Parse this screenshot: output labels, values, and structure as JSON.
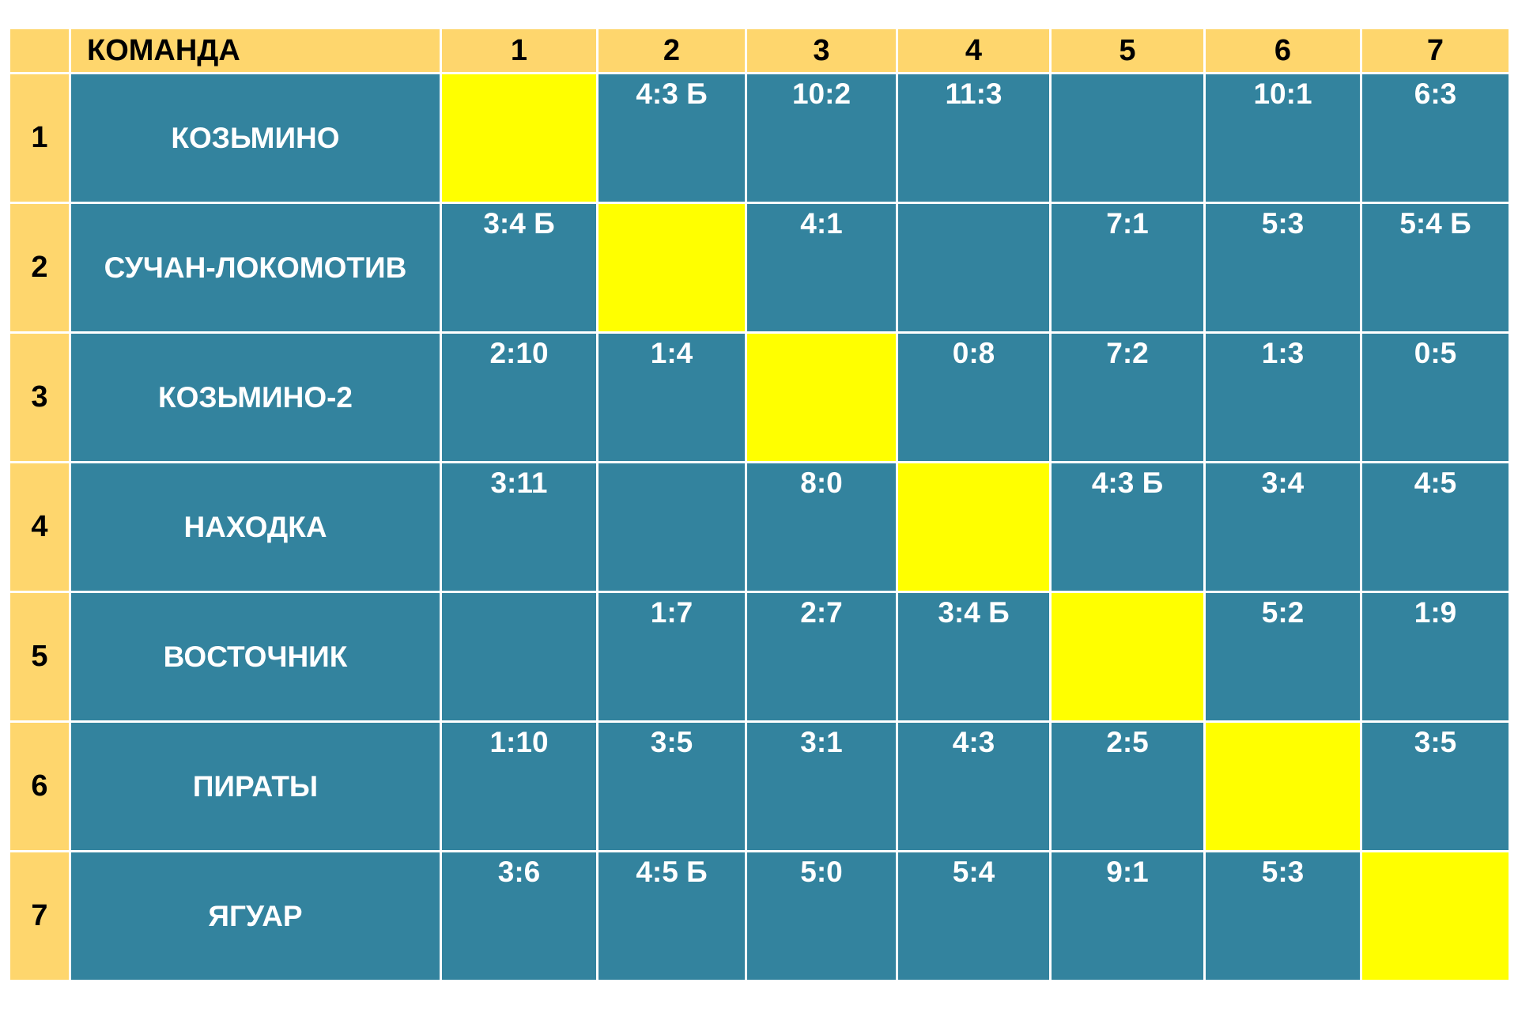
{
  "header": {
    "corner": "",
    "team_label": "КОМАНДА",
    "columns": [
      "1",
      "2",
      "3",
      "4",
      "5",
      "6",
      "7"
    ]
  },
  "rows": [
    {
      "num": "1",
      "team": "КОЗЬМИНО",
      "scores": [
        "",
        "4:3 Б",
        "10:2",
        "11:3",
        "",
        "10:1",
        "6:3"
      ]
    },
    {
      "num": "2",
      "team": "СУЧАН-ЛОКОМОТИВ",
      "scores": [
        "3:4 Б",
        "",
        "4:1",
        "",
        "7:1",
        "5:3",
        "5:4 Б"
      ]
    },
    {
      "num": "3",
      "team": "КОЗЬМИНО-2",
      "scores": [
        "2:10",
        "1:4",
        "",
        "0:8",
        "7:2",
        "1:3",
        "0:5"
      ]
    },
    {
      "num": "4",
      "team": "НАХОДКА",
      "scores": [
        "3:11",
        "",
        "8:0",
        "",
        "4:3 Б",
        "3:4",
        "4:5"
      ]
    },
    {
      "num": "5",
      "team": "ВОСТОЧНИК",
      "scores": [
        "",
        "1:7",
        "2:7",
        "3:4 Б",
        "",
        "5:2",
        "1:9"
      ]
    },
    {
      "num": "6",
      "team": "ПИРАТЫ",
      "scores": [
        "1:10",
        "3:5",
        "3:1",
        "4:3",
        "2:5",
        "",
        "3:5"
      ]
    },
    {
      "num": "7",
      "team": "ЯГУАР",
      "scores": [
        "3:6",
        "4:5 Б",
        "5:0",
        "5:4",
        "9:1",
        "5:3",
        ""
      ]
    }
  ],
  "colors": {
    "header_bg": "#fed66d",
    "cell_bg": "#33839e",
    "diagonal_bg": "#ffff00",
    "grid_line": "#ffffff"
  }
}
